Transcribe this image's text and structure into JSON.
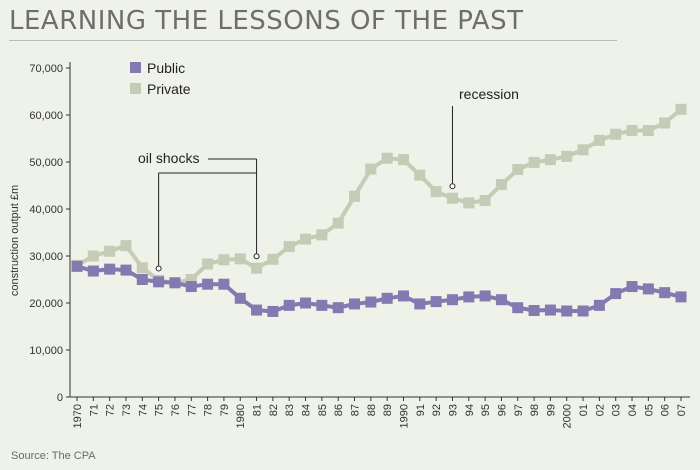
{
  "title": "LEARNING THE LESSONS OF THE PAST",
  "source": "Source: The CPA",
  "colors": {
    "public": "#8479b0",
    "private": "#c6cbb5",
    "axis": "#333333",
    "background": "#eef2e8"
  },
  "chart_data": {
    "type": "line",
    "ylabel": "construction output £m",
    "ylim": [
      0,
      70000
    ],
    "yticks": [
      0,
      10000,
      20000,
      30000,
      40000,
      50000,
      60000,
      70000
    ],
    "ytick_labels": [
      "0",
      "10,000",
      "20,000",
      "30,000",
      "40,000",
      "50,000",
      "60,000",
      "70,000"
    ],
    "grid": false,
    "legend_position": "top-left",
    "categories": [
      "1970",
      "71",
      "72",
      "73",
      "74",
      "75",
      "76",
      "77",
      "78",
      "79",
      "1980",
      "81",
      "82",
      "83",
      "84",
      "85",
      "86",
      "87",
      "88",
      "89",
      "1990",
      "91",
      "92",
      "93",
      "94",
      "95",
      "96",
      "97",
      "98",
      "99",
      "2000",
      "01",
      "02",
      "03",
      "04",
      "05",
      "06",
      "07"
    ],
    "series": [
      {
        "name": "Public",
        "color": "#8479b0",
        "values": [
          27800,
          26800,
          27200,
          27000,
          25000,
          24500,
          24300,
          23500,
          24000,
          24000,
          21000,
          18500,
          18200,
          19500,
          20000,
          19500,
          19000,
          19800,
          20200,
          21000,
          21500,
          19800,
          20300,
          20700,
          21300,
          21500,
          20700,
          19000,
          18400,
          18500,
          18300,
          18300,
          19500,
          22000,
          23500,
          23000,
          22200,
          21300
        ]
      },
      {
        "name": "Private",
        "color": "#c6cbb5",
        "values": [
          28000,
          30000,
          31000,
          32200,
          27500,
          24800,
          24300,
          25000,
          28300,
          29200,
          29400,
          27400,
          29300,
          32000,
          33600,
          34500,
          37000,
          42700,
          48500,
          50800,
          50500,
          47200,
          43700,
          42300,
          41300,
          41800,
          45200,
          48400,
          49900,
          50500,
          51200,
          52600,
          54600,
          55900,
          56700,
          56700,
          58300,
          61200
        ]
      }
    ],
    "annotations": [
      {
        "text": "oil shocks",
        "points": [
          "75",
          "81"
        ]
      },
      {
        "text": "recession",
        "points": [
          "93"
        ]
      }
    ]
  }
}
